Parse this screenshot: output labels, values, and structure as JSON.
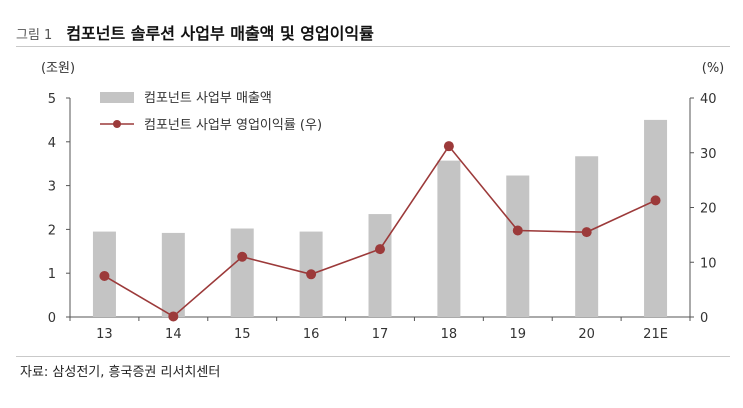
{
  "figure": {
    "label": "그림 1",
    "title": "컴포넌트 솔루션 사업부 매출액 및 영업이익률",
    "source": "자료: 삼성전기, 흥국증권 리서치센터"
  },
  "chart_data": {
    "type": "bar+line",
    "categories": [
      "13",
      "14",
      "15",
      "16",
      "17",
      "18",
      "19",
      "20",
      "21E"
    ],
    "series": [
      {
        "name": "컴포넌트 사업부 매출액",
        "kind": "bar",
        "axis": "left",
        "color": "#c4c4c4",
        "values": [
          1.95,
          1.92,
          2.02,
          1.95,
          2.35,
          3.57,
          3.23,
          3.67,
          4.5
        ]
      },
      {
        "name": "컴포넌트 사업부 영업이익률 (우)",
        "kind": "line",
        "axis": "right",
        "color": "#9c3a3a",
        "values": [
          7.5,
          0.1,
          11.0,
          7.8,
          12.4,
          31.2,
          15.8,
          15.5,
          21.3
        ]
      }
    ],
    "left_axis": {
      "label": "(조원)",
      "min": 0,
      "max": 5,
      "ticks": [
        0,
        1,
        2,
        3,
        4,
        5
      ]
    },
    "right_axis": {
      "label": "(%)",
      "min": 0,
      "max": 40,
      "ticks": [
        0,
        10,
        20,
        30,
        40
      ]
    },
    "grid": false,
    "legend_position": "top-left"
  }
}
